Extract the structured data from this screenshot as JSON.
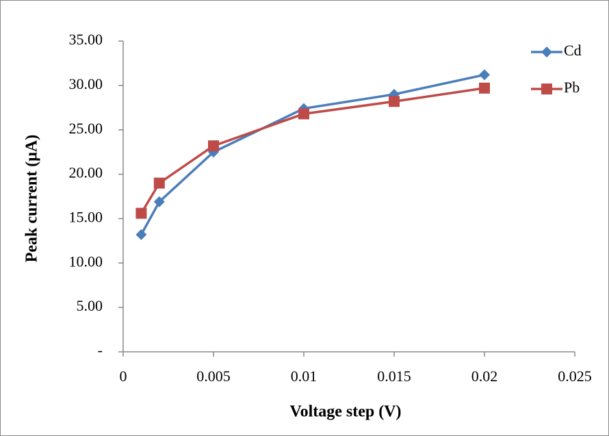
{
  "chart_data": {
    "type": "line",
    "x_label": "Voltage step (V)",
    "y_label": "Peak current (µA)",
    "x": [
      0.001,
      0.002,
      0.005,
      0.01,
      0.015,
      0.02
    ],
    "series": [
      {
        "name": "Cd",
        "color": "#4a7ebb",
        "marker": "diamond",
        "values": [
          13.2,
          16.9,
          22.5,
          27.4,
          29.0,
          31.2
        ]
      },
      {
        "name": "Pb",
        "color": "#be4b48",
        "marker": "square",
        "values": [
          15.6,
          19.0,
          23.2,
          26.8,
          28.2,
          29.7
        ]
      }
    ],
    "xlim": [
      0,
      0.025
    ],
    "xticks": [
      0,
      0.005,
      0.01,
      0.015,
      0.02,
      0.025
    ],
    "ylim": [
      0,
      35
    ],
    "yticks": [
      {
        "value": 0,
        "label": "-"
      },
      {
        "value": 5,
        "label": "5.00"
      },
      {
        "value": 10,
        "label": "10.00"
      },
      {
        "value": 15,
        "label": "15.00"
      },
      {
        "value": 20,
        "label": "20.00"
      },
      {
        "value": 25,
        "label": "25.00"
      },
      {
        "value": 30,
        "label": "30.00"
      },
      {
        "value": 35,
        "label": "35.00"
      }
    ],
    "grid": false,
    "legend": "upper-right"
  }
}
